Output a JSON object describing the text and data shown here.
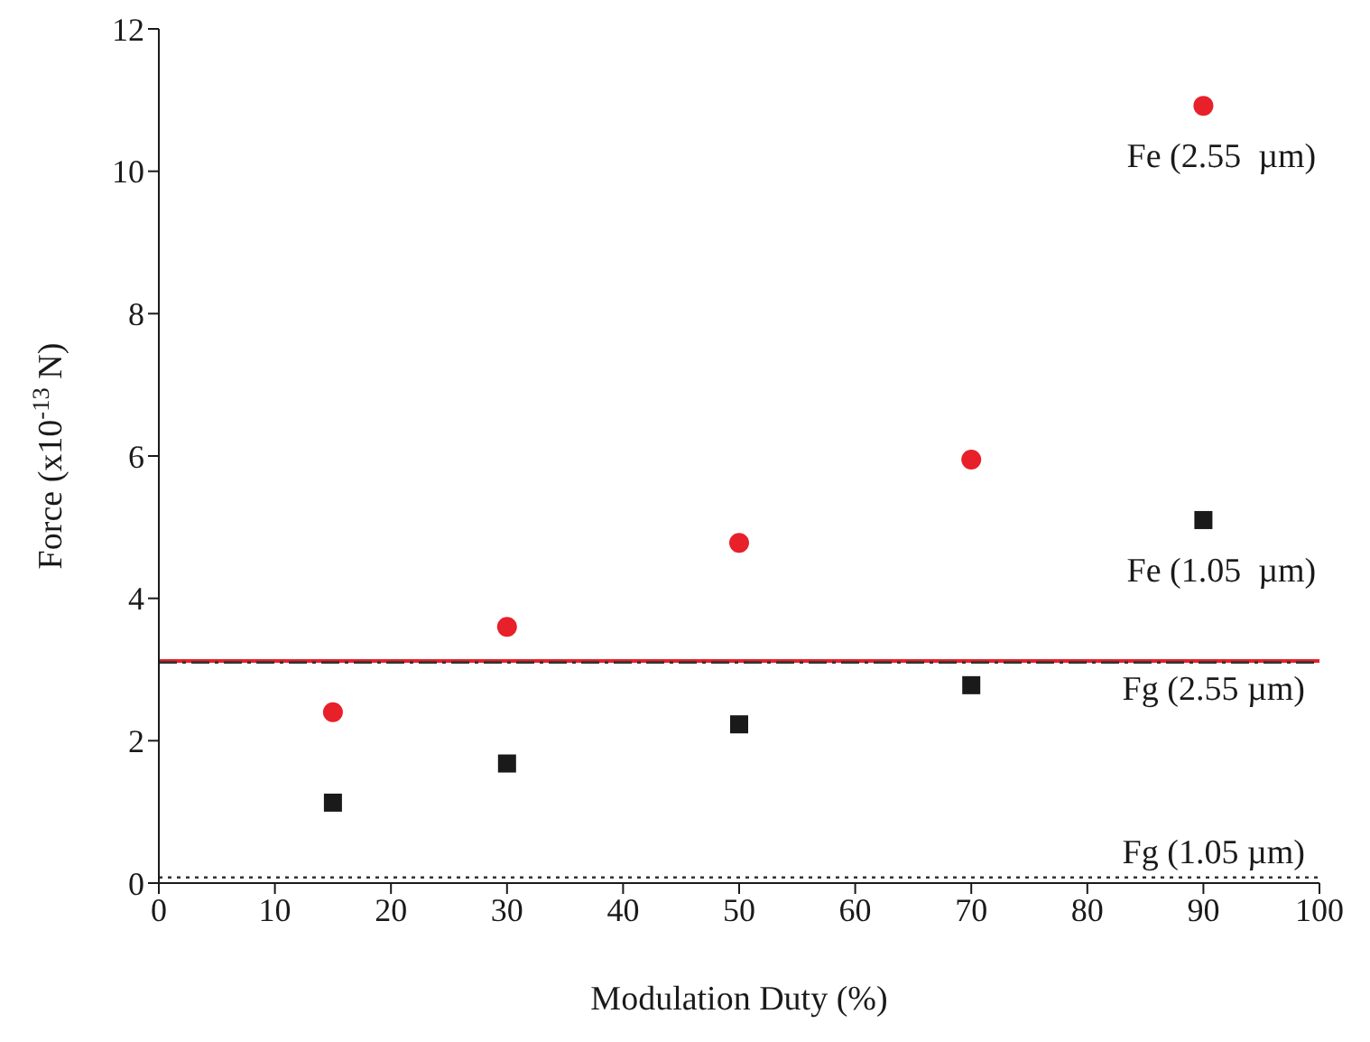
{
  "chart_data": {
    "type": "scatter",
    "xlabel": "Modulation Duty (%)",
    "ylabel": "Force (x10$^{-13}$ N)",
    "x": [
      15,
      30,
      50,
      70,
      90
    ],
    "series": [
      {
        "name": "Fe (2.55  µm)",
        "color": "#e8202a",
        "marker": "circle",
        "values": [
          2.4,
          3.6,
          4.78,
          5.95,
          10.92
        ]
      },
      {
        "name": "Fe (1.05  µm)",
        "color": "#1a1a1a",
        "marker": "square",
        "values": [
          1.13,
          1.68,
          2.23,
          2.78,
          5.1
        ]
      }
    ],
    "ref_lines": [
      {
        "axis": "y",
        "value": 3.12,
        "label": "Fg (2.55  µm)",
        "color": "#e8202a",
        "line_style": "solid"
      },
      {
        "axis": "y",
        "value": 3.1,
        "label": null,
        "color": "#333333",
        "line_style": "dashdot"
      },
      {
        "axis": "y",
        "value": 0.08,
        "label": "Fg (1.05  µm)",
        "color": "#333333",
        "line_style": "dotted"
      }
    ],
    "xlim": [
      0,
      100
    ],
    "xticks": [
      0,
      10,
      20,
      30,
      40,
      50,
      60,
      70,
      80,
      90,
      100
    ],
    "ylim": [
      0,
      12
    ],
    "yticks": [
      0,
      2,
      4,
      6,
      8,
      10,
      12
    ],
    "grid": false
  }
}
